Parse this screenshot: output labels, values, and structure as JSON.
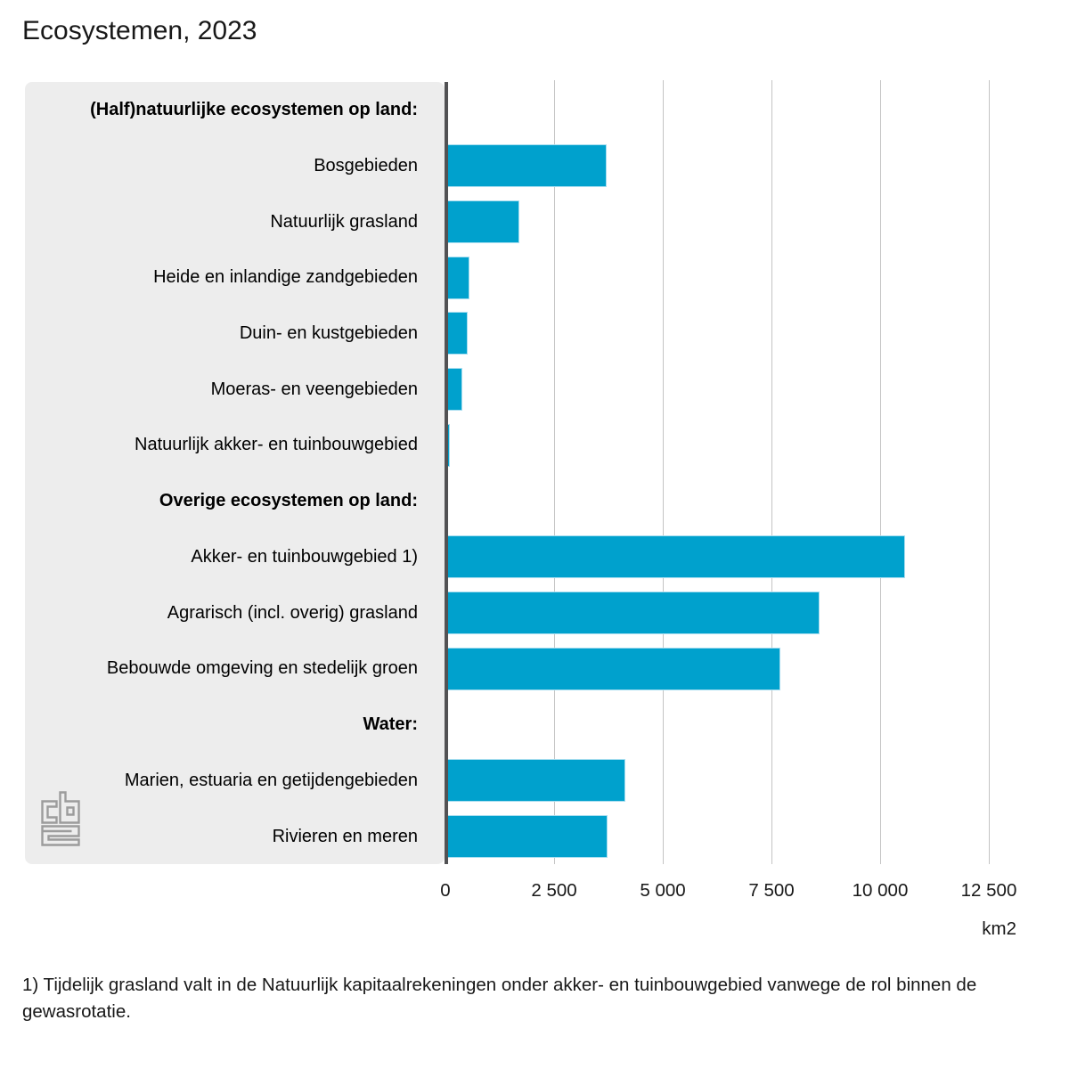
{
  "title": "Ecosystemen, 2023",
  "axis": {
    "tick_labels": [
      "0",
      "2 500",
      "5 000",
      "7 500",
      "10 000",
      "12 500"
    ],
    "tick_values": [
      0,
      2500,
      5000,
      7500,
      10000,
      12500
    ],
    "unit_label": "km2"
  },
  "footnote": "1) Tijdelijk grasland valt in de Natuurlijk kapitaalrekeningen onder akker- en tuinbouwgebied vanwege de rol binnen de gewasrotatie.",
  "logo": {
    "name": "cbs-logo"
  },
  "colors": {
    "bar": "#00a1cd",
    "bar_border": "#a9def0",
    "panel_bg": "#ededed",
    "axis_line": "#525254",
    "gridline": "#c4c4c4",
    "text": "#181818",
    "logo": "#9c9c9c"
  },
  "chart_data": {
    "type": "bar",
    "orientation": "horizontal",
    "title": "Ecosystemen, 2023",
    "xlabel": "km2",
    "unit": "km2",
    "xlim": [
      0,
      13700
    ],
    "x_ticks": [
      0,
      2500,
      5000,
      7500,
      10000,
      12500
    ],
    "grid": true,
    "legend": false,
    "rows": [
      {
        "label": "(Half)natuurlijke ecosystemen op land:",
        "header": true,
        "value": null
      },
      {
        "label": "Bosgebieden",
        "header": false,
        "value": 3670
      },
      {
        "label": "Natuurlijk grasland",
        "header": false,
        "value": 1650
      },
      {
        "label": "Heide en inlandige zandgebieden",
        "header": false,
        "value": 510
      },
      {
        "label": "Duin- en kustgebieden",
        "header": false,
        "value": 470
      },
      {
        "label": "Moeras- en veengebieden",
        "header": false,
        "value": 350
      },
      {
        "label": "Natuurlijk akker- en tuinbouwgebied",
        "header": false,
        "value": 70
      },
      {
        "label": "Overige ecosystemen op land:",
        "header": true,
        "value": null
      },
      {
        "label": "Akker- en tuinbouwgebied 1)",
        "header": false,
        "value": 10540
      },
      {
        "label": "Agrarisch (incl. overig) grasland",
        "header": false,
        "value": 8570
      },
      {
        "label": "Bebouwde omgeving en stedelijk groen",
        "header": false,
        "value": 7670
      },
      {
        "label": "Water:",
        "header": true,
        "value": null
      },
      {
        "label": "Marien, estuaria en getijdengebieden",
        "header": false,
        "value": 4100
      },
      {
        "label": "Rivieren en meren",
        "header": false,
        "value": 3690
      }
    ]
  }
}
